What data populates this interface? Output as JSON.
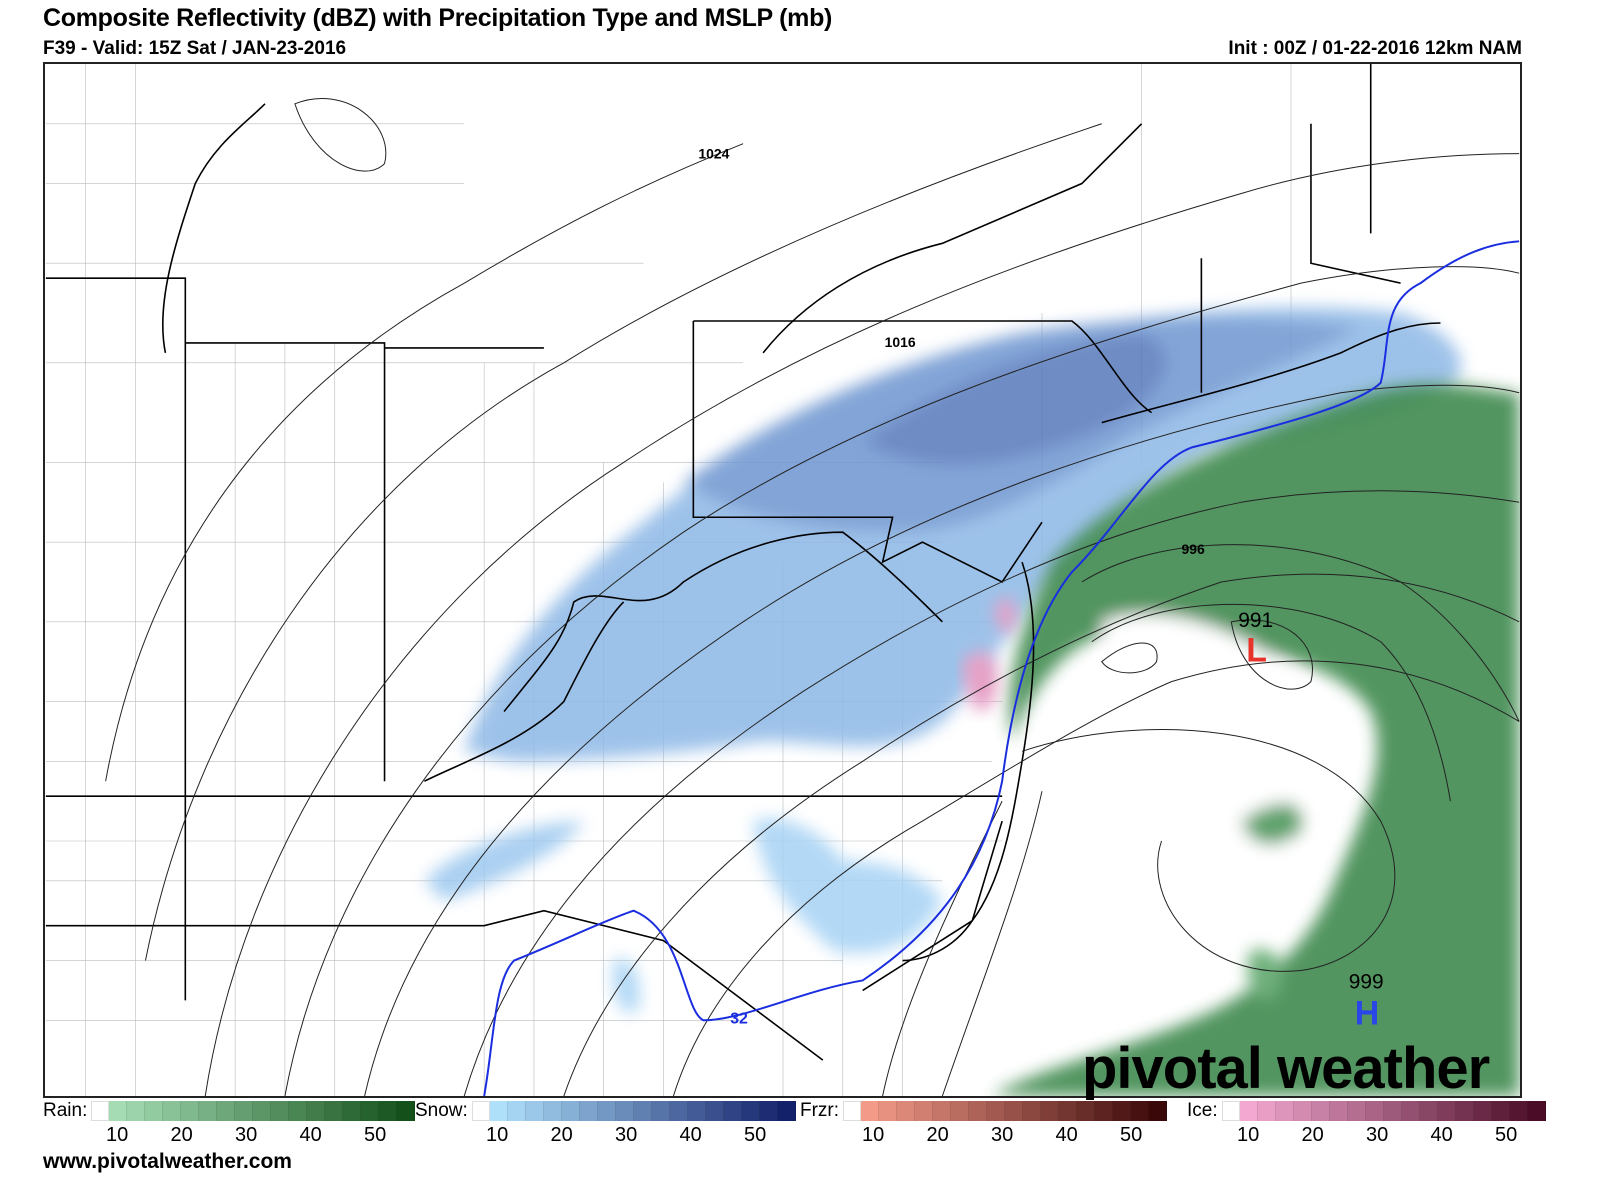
{
  "header": {
    "title": "Composite Reflectivity (dBZ) with Precipitation Type and MSLP (mb)",
    "valid": "F39 - Valid: 15Z Sat / JAN-23-2016",
    "init": "Init : 00Z / 01-22-2016 12km NAM"
  },
  "map": {
    "isobar_labels": [
      "1024",
      "1016",
      "996"
    ],
    "low": {
      "pressure": "991",
      "symbol": "L",
      "color": "#e8332a"
    },
    "high": {
      "pressure": "999",
      "symbol": "H",
      "color": "#2a45e8"
    },
    "freezing_line_label": "32",
    "freezing_line_color": "#1a2ee0",
    "logo": "pivotal weather"
  },
  "legend": {
    "rain": {
      "label": "Rain:",
      "ticks": [
        "10",
        "20",
        "30",
        "40",
        "50"
      ],
      "from": "#a5dcb4",
      "to": "#13501a"
    },
    "snow": {
      "label": "Snow:",
      "ticks": [
        "10",
        "20",
        "30",
        "40",
        "50"
      ],
      "from": "#aee0fa",
      "to": "#13206a"
    },
    "frzr": {
      "label": "Frzr:",
      "ticks": [
        "10",
        "20",
        "30",
        "40",
        "50"
      ],
      "from": "#f39a88",
      "to": "#3a0808"
    },
    "ice": {
      "label": "Ice:",
      "ticks": [
        "10",
        "20",
        "30",
        "40",
        "50"
      ],
      "from": "#f2a8d0",
      "to": "#4a0c26"
    }
  },
  "footer": {
    "url": "www.pivotalweather.com"
  }
}
